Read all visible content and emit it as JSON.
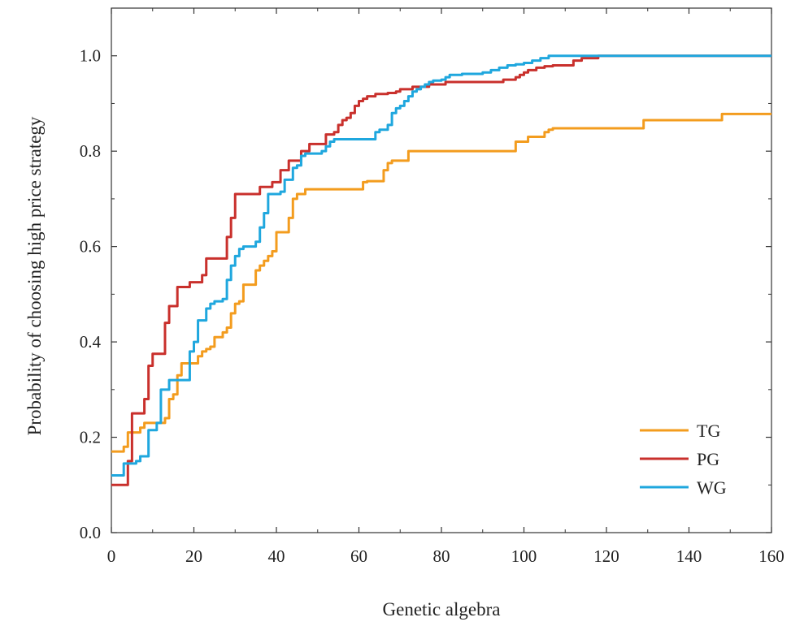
{
  "chart_data": {
    "type": "line",
    "title": "",
    "xlabel": "Genetic algebra",
    "ylabel": "Probability of choosing high price strategy",
    "xlim": [
      0,
      160
    ],
    "ylim": [
      0,
      1.1
    ],
    "xticks": [
      0,
      20,
      40,
      60,
      80,
      100,
      120,
      140,
      160
    ],
    "yticks": [
      0.0,
      0.2,
      0.4,
      0.6,
      0.8,
      1.0
    ],
    "ytick_labels": [
      "0.0",
      "0.2",
      "0.4",
      "0.6",
      "0.8",
      "1.0"
    ],
    "grid": false,
    "legend_position": "bottom-right",
    "series": [
      {
        "name": "TG",
        "color": "#F39C1E",
        "x": [
          0,
          2,
          3,
          4,
          5,
          7,
          8,
          9,
          10,
          12,
          13,
          14,
          15,
          16,
          17,
          18,
          20,
          21,
          22,
          23,
          24,
          25,
          26,
          27,
          28,
          29,
          30,
          31,
          32,
          33,
          35,
          36,
          37,
          38,
          39,
          40,
          42,
          43,
          44,
          45,
          47,
          60,
          61,
          62,
          65,
          66,
          67,
          68,
          70,
          72,
          73,
          97,
          98,
          100,
          101,
          104,
          105,
          106,
          107,
          109,
          128,
          129,
          147,
          148,
          160
        ],
        "y": [
          0.17,
          0.17,
          0.18,
          0.21,
          0.21,
          0.22,
          0.23,
          0.23,
          0.23,
          0.23,
          0.24,
          0.28,
          0.29,
          0.33,
          0.355,
          0.355,
          0.355,
          0.37,
          0.38,
          0.385,
          0.39,
          0.41,
          0.41,
          0.42,
          0.43,
          0.46,
          0.48,
          0.485,
          0.52,
          0.52,
          0.55,
          0.56,
          0.57,
          0.58,
          0.59,
          0.63,
          0.63,
          0.66,
          0.7,
          0.71,
          0.72,
          0.72,
          0.735,
          0.737,
          0.737,
          0.76,
          0.775,
          0.78,
          0.78,
          0.8,
          0.8,
          0.8,
          0.82,
          0.82,
          0.83,
          0.83,
          0.84,
          0.845,
          0.848,
          0.848,
          0.848,
          0.865,
          0.865,
          0.878,
          0.878
        ]
      },
      {
        "name": "PG",
        "color": "#C9302C",
        "x": [
          0,
          1,
          2,
          3,
          4,
          5,
          7,
          8,
          9,
          10,
          11,
          12,
          13,
          14,
          15,
          16,
          17,
          18,
          19,
          20,
          21,
          22,
          23,
          24,
          25,
          26,
          27,
          28,
          29,
          30,
          31,
          32,
          33,
          34,
          35,
          36,
          37,
          38,
          39,
          40,
          41,
          42,
          43,
          44,
          45,
          46,
          47,
          48,
          49,
          50,
          51,
          52,
          53,
          54,
          55,
          56,
          57,
          58,
          59,
          60,
          61,
          62,
          63,
          64,
          65,
          66,
          67,
          68,
          69,
          70,
          71,
          72,
          73,
          74,
          75,
          76,
          77,
          78,
          79,
          80,
          81,
          82,
          85,
          90,
          92,
          95,
          97,
          98,
          99,
          100,
          101,
          102,
          103,
          105,
          107,
          110,
          112,
          114,
          116,
          118,
          160
        ],
        "y": [
          0.1,
          0.1,
          0.1,
          0.1,
          0.15,
          0.25,
          0.25,
          0.28,
          0.35,
          0.375,
          0.375,
          0.375,
          0.44,
          0.475,
          0.475,
          0.515,
          0.515,
          0.515,
          0.525,
          0.525,
          0.525,
          0.54,
          0.575,
          0.575,
          0.575,
          0.575,
          0.575,
          0.62,
          0.66,
          0.71,
          0.71,
          0.71,
          0.71,
          0.71,
          0.71,
          0.725,
          0.725,
          0.725,
          0.735,
          0.735,
          0.76,
          0.76,
          0.78,
          0.78,
          0.78,
          0.8,
          0.8,
          0.815,
          0.815,
          0.815,
          0.815,
          0.835,
          0.835,
          0.84,
          0.855,
          0.865,
          0.87,
          0.88,
          0.895,
          0.905,
          0.91,
          0.915,
          0.915,
          0.92,
          0.92,
          0.92,
          0.922,
          0.922,
          0.925,
          0.93,
          0.93,
          0.93,
          0.935,
          0.935,
          0.935,
          0.935,
          0.94,
          0.94,
          0.94,
          0.94,
          0.945,
          0.945,
          0.945,
          0.945,
          0.945,
          0.95,
          0.95,
          0.955,
          0.96,
          0.965,
          0.97,
          0.97,
          0.975,
          0.978,
          0.98,
          0.98,
          0.99,
          0.995,
          0.995,
          1.0,
          1.0
        ]
      },
      {
        "name": "WG",
        "color": "#1FA7DE",
        "x": [
          0,
          2,
          3,
          5,
          6,
          7,
          8,
          9,
          10,
          11,
          12,
          13,
          14,
          15,
          16,
          17,
          18,
          19,
          20,
          21,
          22,
          23,
          24,
          25,
          26,
          27,
          28,
          29,
          30,
          31,
          32,
          33,
          34,
          35,
          36,
          37,
          38,
          39,
          40,
          41,
          42,
          43,
          44,
          45,
          46,
          47,
          48,
          49,
          50,
          51,
          52,
          53,
          54,
          55,
          56,
          57,
          58,
          59,
          60,
          61,
          62,
          63,
          64,
          65,
          66,
          67,
          68,
          69,
          70,
          71,
          72,
          73,
          74,
          75,
          76,
          77,
          78,
          79,
          80,
          81,
          82,
          85,
          88,
          90,
          92,
          94,
          96,
          98,
          100,
          102,
          104,
          106,
          108,
          160
        ],
        "y": [
          0.12,
          0.12,
          0.145,
          0.145,
          0.15,
          0.16,
          0.16,
          0.215,
          0.215,
          0.23,
          0.3,
          0.3,
          0.32,
          0.32,
          0.32,
          0.32,
          0.32,
          0.38,
          0.4,
          0.445,
          0.445,
          0.47,
          0.48,
          0.485,
          0.485,
          0.49,
          0.53,
          0.56,
          0.58,
          0.595,
          0.6,
          0.6,
          0.6,
          0.61,
          0.64,
          0.67,
          0.71,
          0.71,
          0.71,
          0.715,
          0.74,
          0.74,
          0.765,
          0.77,
          0.79,
          0.795,
          0.795,
          0.795,
          0.795,
          0.8,
          0.81,
          0.82,
          0.825,
          0.825,
          0.825,
          0.825,
          0.825,
          0.825,
          0.825,
          0.825,
          0.825,
          0.825,
          0.84,
          0.845,
          0.845,
          0.855,
          0.88,
          0.89,
          0.895,
          0.905,
          0.915,
          0.925,
          0.93,
          0.935,
          0.94,
          0.945,
          0.948,
          0.948,
          0.95,
          0.955,
          0.96,
          0.962,
          0.962,
          0.965,
          0.97,
          0.975,
          0.98,
          0.982,
          0.985,
          0.99,
          0.995,
          1.0,
          1.0,
          1.0
        ]
      }
    ]
  }
}
